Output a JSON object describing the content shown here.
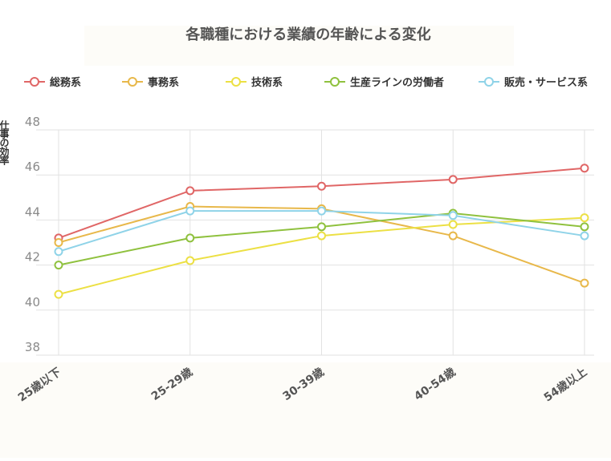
{
  "chart_data": {
    "type": "line",
    "title": "各職種における業績の年齢による変化",
    "xlabel": "",
    "ylabel": "仕事の効率",
    "categories": [
      "25歳以下",
      "25-29歳",
      "30-39歳",
      "40-54歳",
      "54歳以上"
    ],
    "ylim": [
      38,
      48
    ],
    "yticks": [
      38,
      40,
      42,
      44,
      46,
      48
    ],
    "grid": true,
    "legend_position": "top",
    "series": [
      {
        "name": "総務系",
        "color": "#e06666",
        "values": [
          43.2,
          45.3,
          45.5,
          45.8,
          46.3
        ]
      },
      {
        "name": "事務系",
        "color": "#e8b84a",
        "values": [
          43.0,
          44.6,
          44.5,
          43.3,
          41.2
        ]
      },
      {
        "name": "技術系",
        "color": "#ece044",
        "values": [
          40.7,
          42.2,
          43.3,
          43.8,
          44.1
        ]
      },
      {
        "name": "生産ラインの労働者",
        "color": "#8fc13e",
        "values": [
          42.0,
          43.2,
          43.7,
          44.3,
          43.7
        ]
      },
      {
        "name": "販売・サービス系",
        "color": "#8fd3e8",
        "values": [
          42.6,
          44.4,
          44.4,
          44.2,
          43.3
        ]
      }
    ]
  }
}
